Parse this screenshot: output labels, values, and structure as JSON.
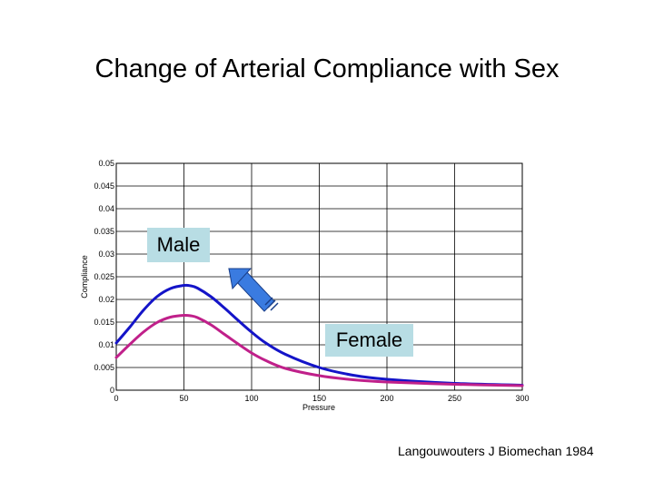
{
  "slide": {
    "title": "Change of Arterial Compliance with Sex",
    "citation": "Langouwouters  J Biomechan 1984"
  },
  "annotations": {
    "male_label": "Male",
    "female_label": "Female"
  },
  "colors": {
    "male_line": "#1414c8",
    "female_line": "#c0208a",
    "label_box": "#b8dde4",
    "arrow": "#3a7be0"
  },
  "chart_data": {
    "type": "line",
    "title": "",
    "xlabel": "Pressure",
    "ylabel": "Compliance",
    "xlim": [
      0,
      300
    ],
    "ylim": [
      0,
      0.05
    ],
    "grid": true,
    "xticks": [
      0,
      50,
      100,
      150,
      200,
      250,
      300
    ],
    "yticks": [
      0,
      0.005,
      0.01,
      0.015,
      0.02,
      0.025,
      0.03,
      0.035,
      0.04,
      0.045,
      0.05
    ],
    "xtick_labels": [
      "0",
      "50",
      "100",
      "150",
      "200",
      "250",
      "300"
    ],
    "ytick_labels": [
      "0",
      "0.005",
      "0.01",
      "0.015",
      "0.02",
      "0.025",
      "0.03",
      "0.035",
      "0.04",
      "0.045",
      "0.05"
    ],
    "series": [
      {
        "name": "Male",
        "color": "#1414c8",
        "x": [
          0,
          10,
          20,
          30,
          40,
          50,
          55,
          60,
          70,
          80,
          90,
          100,
          110,
          125,
          150,
          175,
          200,
          250,
          300
        ],
        "y": [
          0.0104,
          0.0139,
          0.0176,
          0.0206,
          0.0224,
          0.0231,
          0.023,
          0.0225,
          0.0206,
          0.0181,
          0.0154,
          0.0128,
          0.0105,
          0.0079,
          0.005,
          0.0033,
          0.0024,
          0.0015,
          0.0011
        ]
      },
      {
        "name": "Female",
        "color": "#c0208a",
        "x": [
          0,
          10,
          20,
          30,
          40,
          50,
          55,
          60,
          70,
          80,
          90,
          100,
          110,
          125,
          150,
          175,
          200,
          250,
          300
        ],
        "y": [
          0.0072,
          0.0101,
          0.0128,
          0.0149,
          0.0161,
          0.0165,
          0.0164,
          0.016,
          0.0144,
          0.0123,
          0.0102,
          0.0082,
          0.0066,
          0.0048,
          0.0032,
          0.0023,
          0.0018,
          0.0013,
          0.001
        ]
      }
    ]
  }
}
